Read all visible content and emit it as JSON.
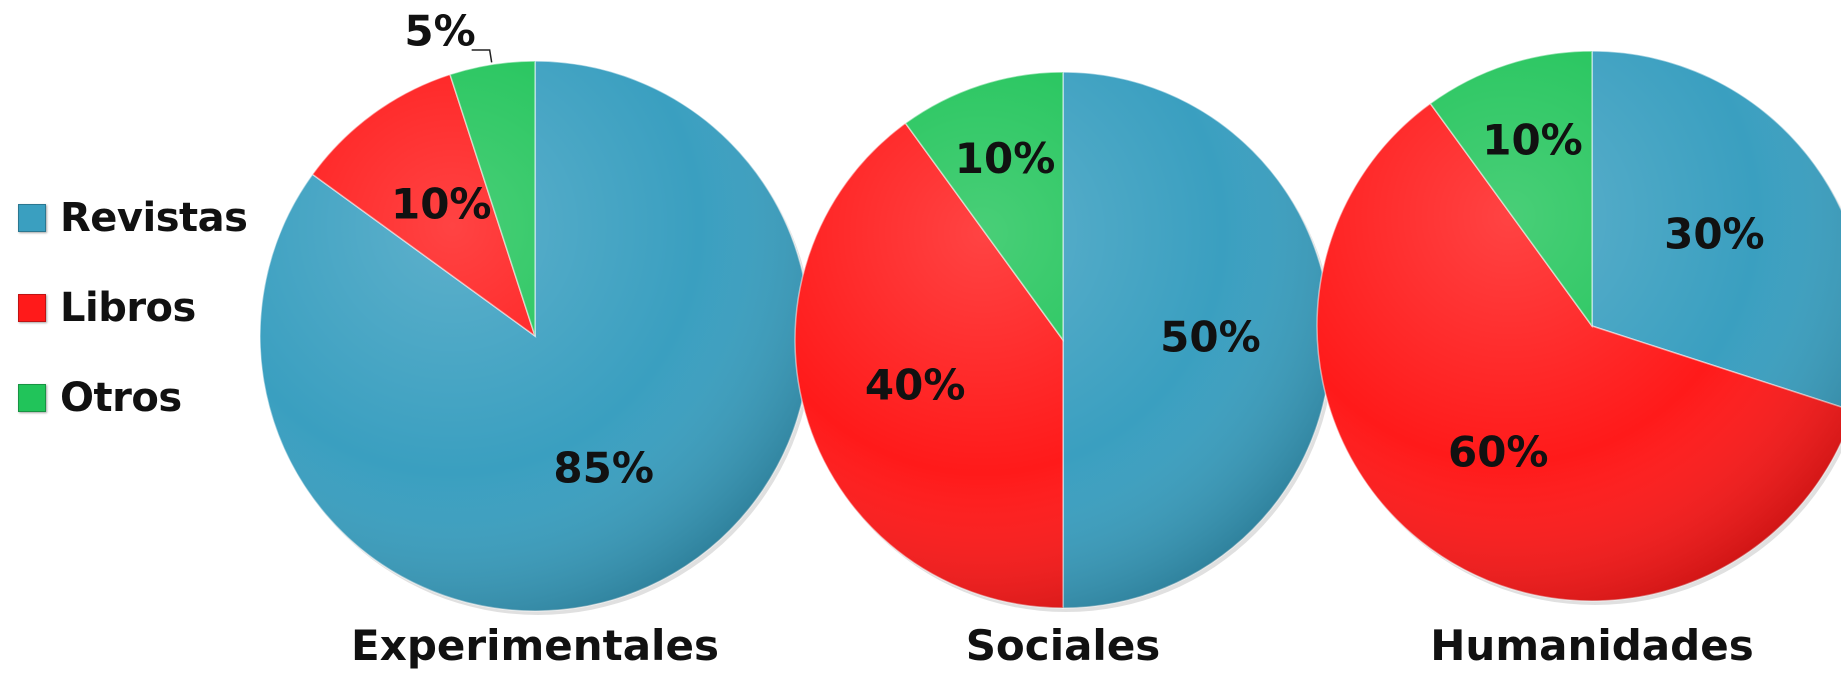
{
  "legend": {
    "items": [
      {
        "label": "Revistas",
        "color": "#3a9fc0"
      },
      {
        "label": "Libros",
        "color": "#ff1a1a"
      },
      {
        "label": "Otros",
        "color": "#21c45a"
      }
    ]
  },
  "chart_data": [
    {
      "type": "pie",
      "title": "Experimentales",
      "slices": [
        {
          "label": "Revistas",
          "value": 85,
          "display": "85%",
          "color": "#3a9fc0"
        },
        {
          "label": "Libros",
          "value": 10,
          "display": "10%",
          "color": "#ff1a1a"
        },
        {
          "label": "Otros",
          "value": 5,
          "display": "5%",
          "color": "#21c45a"
        }
      ]
    },
    {
      "type": "pie",
      "title": "Sociales",
      "slices": [
        {
          "label": "Revistas",
          "value": 50,
          "display": "50%",
          "color": "#3a9fc0"
        },
        {
          "label": "Libros",
          "value": 40,
          "display": "40%",
          "color": "#ff1a1a"
        },
        {
          "label": "Otros",
          "value": 10,
          "display": "10%",
          "color": "#21c45a"
        }
      ]
    },
    {
      "type": "pie",
      "title": "Humanidades",
      "slices": [
        {
          "label": "Revistas",
          "value": 30,
          "display": "30%",
          "color": "#3a9fc0"
        },
        {
          "label": "Libros",
          "value": 60,
          "display": "60%",
          "color": "#ff1a1a"
        },
        {
          "label": "Otros",
          "value": 10,
          "display": "10%",
          "color": "#21c45a"
        }
      ]
    }
  ]
}
